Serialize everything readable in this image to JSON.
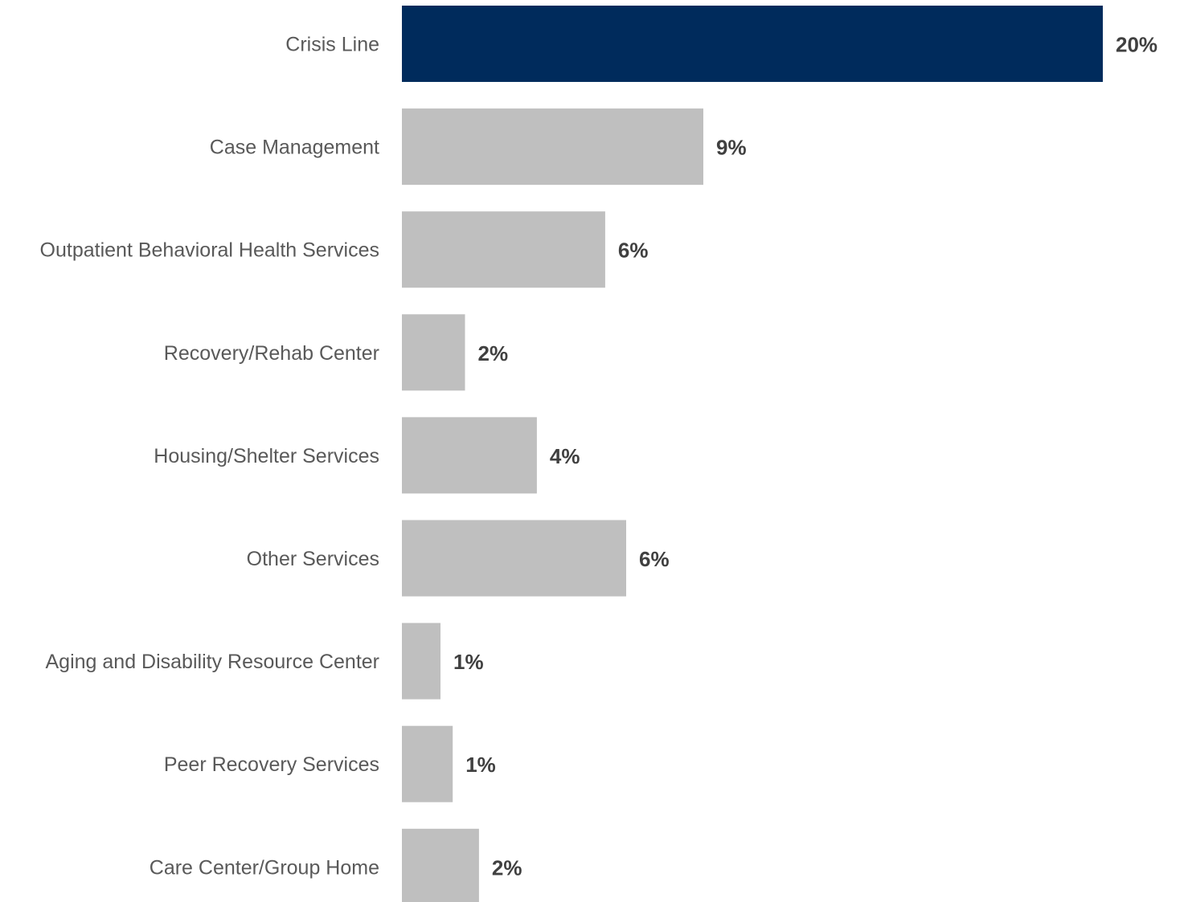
{
  "chart_data": {
    "type": "bar",
    "orientation": "horizontal",
    "title": "",
    "xlabel": "",
    "ylabel": "",
    "categories": [
      "Crisis Line",
      "Case Management",
      "Outpatient Behavioral Health Services",
      "Recovery/Rehab Center",
      "Housing/Shelter Services",
      "Other Services",
      "Aging and Disability Resource Center",
      "Peer Recovery Services",
      "Care Center/Group Home"
    ],
    "values": [
      20,
      8.6,
      5.8,
      1.8,
      3.85,
      6.4,
      1.1,
      1.45,
      2.2
    ],
    "value_labels": [
      "20%",
      "9%",
      "6%",
      "2%",
      "4%",
      "6%",
      "1%",
      "1%",
      "2%"
    ],
    "unit": "%",
    "xlim": [
      0,
      20
    ],
    "grid": false,
    "legend": "none",
    "highlight_index": 0,
    "colors": {
      "highlight": "#002B5C",
      "default": "#BFBFBF",
      "category_text": "#595959",
      "value_text": "#404040"
    }
  }
}
